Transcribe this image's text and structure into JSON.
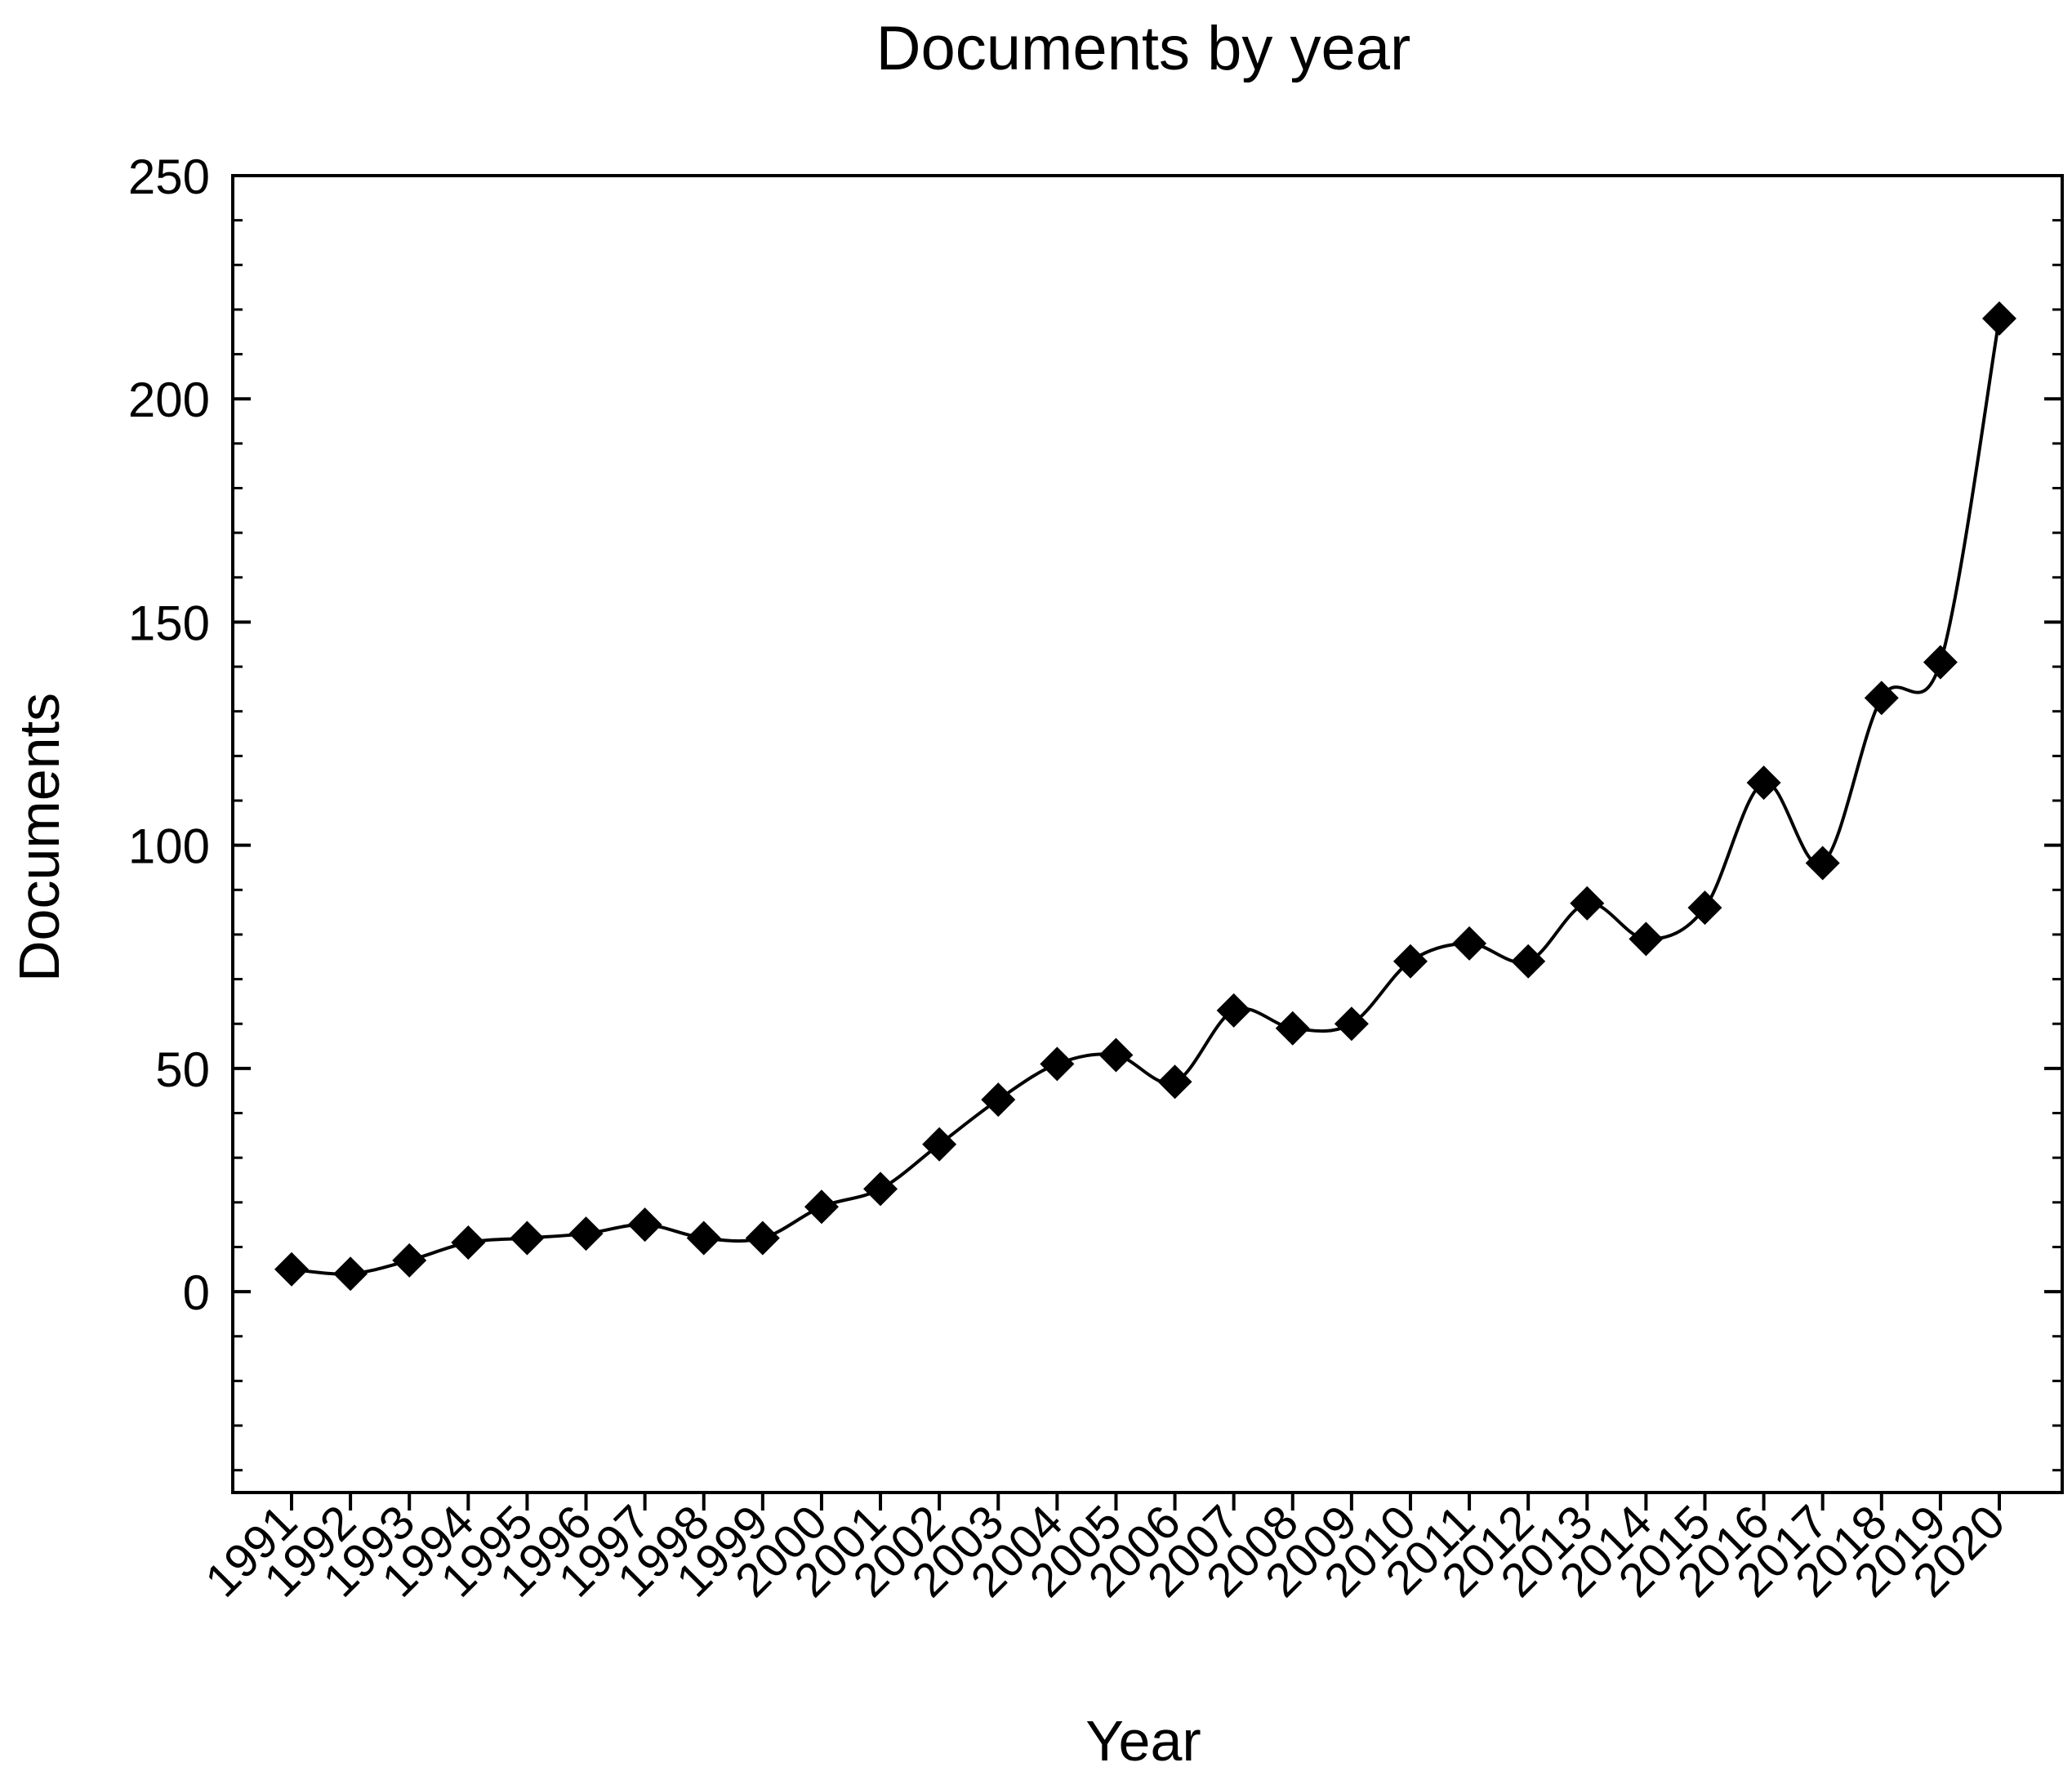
{
  "chart_data": {
    "type": "line",
    "title": "Documents by year",
    "xlabel": "Year",
    "ylabel": "Documents",
    "ylim": [
      -45,
      250
    ],
    "yticks": [
      0,
      50,
      100,
      150,
      200,
      250
    ],
    "grid": false,
    "marker": "diamond",
    "smooth": true,
    "colors": {
      "line": "#000000",
      "marker": "#000000",
      "axis": "#000000"
    },
    "categories": [
      "1991",
      "1992",
      "1993",
      "1994",
      "1995",
      "1996",
      "1997",
      "1998",
      "1999",
      "2000",
      "2001",
      "2002",
      "2003",
      "2004",
      "2005",
      "2006",
      "2007",
      "2008",
      "2009",
      "2010",
      "2011",
      "2012",
      "2013",
      "2014",
      "2015",
      "2016",
      "2017",
      "2018",
      "2019",
      "2020"
    ],
    "series": [
      {
        "values": [
          5,
          4,
          7,
          11,
          12,
          13,
          15,
          12,
          12,
          19,
          23,
          33,
          43,
          51,
          53,
          47,
          63,
          59,
          60,
          74,
          78,
          74,
          87,
          79,
          86,
          114,
          96,
          133,
          141,
          218
        ]
      }
    ]
  }
}
